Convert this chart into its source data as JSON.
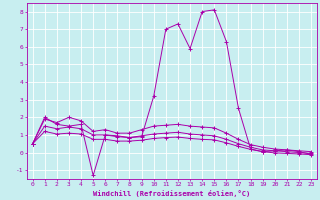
{
  "xlabel": "Windchill (Refroidissement éolien,°C)",
  "background_color": "#c8eef0",
  "grid_color": "#b0d8dc",
  "line_color": "#aa00aa",
  "xlim": [
    -0.5,
    23.5
  ],
  "ylim": [
    -1.5,
    8.5
  ],
  "xticks": [
    0,
    1,
    2,
    3,
    4,
    5,
    6,
    7,
    8,
    9,
    10,
    11,
    12,
    13,
    14,
    15,
    16,
    17,
    18,
    19,
    20,
    21,
    22,
    23
  ],
  "yticks": [
    -1,
    0,
    1,
    2,
    3,
    4,
    5,
    6,
    7,
    8
  ],
  "series": [
    [
      0.5,
      2.0,
      1.6,
      1.5,
      1.6,
      -1.3,
      1.0,
      0.95,
      0.85,
      0.9,
      3.2,
      7.0,
      7.3,
      5.9,
      8.0,
      8.1,
      6.3,
      2.5,
      0.2,
      0.05,
      0.1,
      0.15,
      0.05,
      -0.1
    ],
    [
      0.5,
      1.9,
      1.7,
      2.0,
      1.8,
      1.2,
      1.3,
      1.1,
      1.1,
      1.3,
      1.5,
      1.55,
      1.6,
      1.5,
      1.45,
      1.4,
      1.1,
      0.75,
      0.45,
      0.3,
      0.2,
      0.15,
      0.1,
      0.05
    ],
    [
      0.5,
      1.5,
      1.35,
      1.45,
      1.35,
      1.0,
      1.0,
      0.9,
      0.85,
      0.95,
      1.05,
      1.1,
      1.15,
      1.05,
      1.0,
      0.95,
      0.75,
      0.5,
      0.3,
      0.15,
      0.1,
      0.05,
      0.0,
      -0.05
    ],
    [
      0.5,
      1.2,
      1.05,
      1.1,
      1.05,
      0.75,
      0.75,
      0.65,
      0.65,
      0.7,
      0.8,
      0.85,
      0.88,
      0.8,
      0.75,
      0.72,
      0.55,
      0.35,
      0.18,
      0.05,
      -0.02,
      -0.05,
      -0.08,
      -0.12
    ]
  ]
}
